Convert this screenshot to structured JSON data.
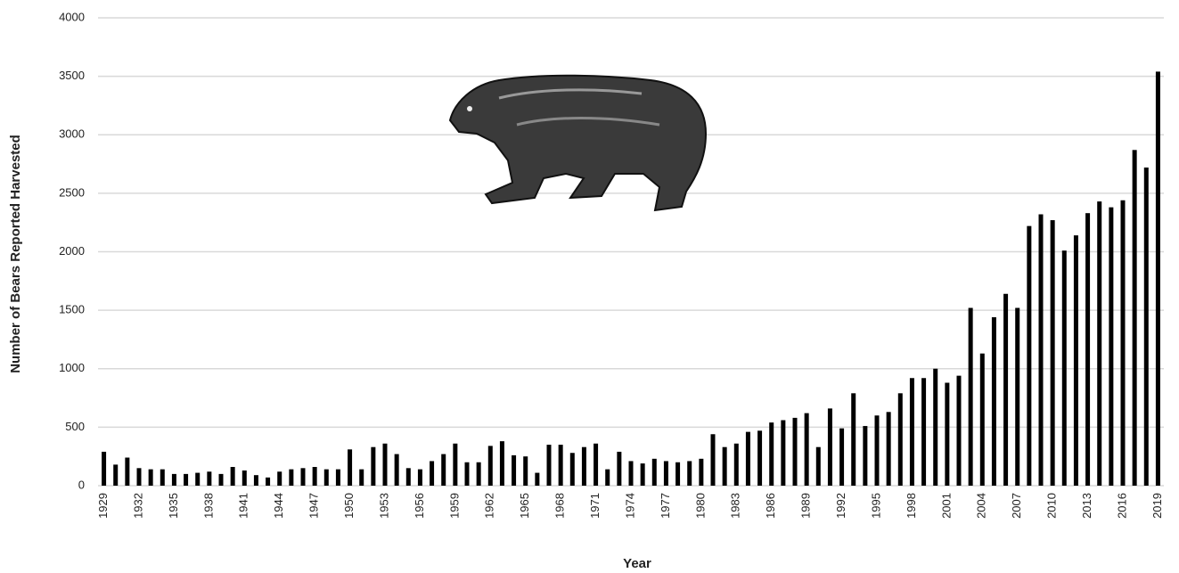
{
  "chart_data": {
    "type": "bar",
    "x_label": "Year",
    "y_label": "Number of Bears Reported Harvested",
    "categories": [
      "1929",
      null,
      null,
      "1932",
      null,
      null,
      "1935",
      null,
      null,
      "1938",
      null,
      null,
      "1941",
      null,
      null,
      "1944",
      null,
      null,
      "1947",
      null,
      null,
      "1950",
      null,
      null,
      "1953",
      null,
      null,
      "1956",
      null,
      null,
      "1959",
      null,
      null,
      "1962",
      null,
      null,
      "1965",
      null,
      null,
      "1968",
      null,
      null,
      "1971",
      null,
      null,
      "1974",
      null,
      null,
      "1977",
      null,
      null,
      "1980",
      null,
      null,
      "1983",
      null,
      null,
      "1986",
      null,
      null,
      "1989",
      null,
      null,
      "1992",
      null,
      null,
      "1995",
      null,
      null,
      "1998",
      null,
      null,
      "2001",
      null,
      null,
      "2004",
      null,
      null,
      "2007",
      null,
      null,
      "2010",
      null,
      null,
      "2013",
      null,
      null,
      "2016",
      null,
      null,
      "2019"
    ],
    "values": [
      290,
      180,
      240,
      150,
      140,
      140,
      100,
      100,
      110,
      120,
      100,
      160,
      130,
      90,
      70,
      120,
      140,
      150,
      160,
      140,
      140,
      310,
      140,
      330,
      360,
      270,
      150,
      140,
      210,
      270,
      360,
      200,
      200,
      340,
      380,
      260,
      250,
      110,
      350,
      350,
      280,
      330,
      360,
      140,
      290,
      210,
      190,
      230,
      210,
      200,
      210,
      230,
      440,
      330,
      360,
      460,
      470,
      540,
      560,
      580,
      620,
      330,
      660,
      490,
      790,
      510,
      600,
      630,
      790,
      920,
      920,
      1000,
      880,
      940,
      1520,
      1130,
      1440,
      1640,
      1520,
      2220,
      2320,
      2270,
      2010,
      2140,
      2330,
      2430,
      2380,
      2440,
      2870,
      2720,
      3540
    ],
    "color": "#000000",
    "ylim": [
      0,
      4000
    ],
    "yticks": [
      0,
      500,
      1000,
      1500,
      2000,
      2500,
      3000,
      3500,
      4000
    ],
    "grid": true
  }
}
